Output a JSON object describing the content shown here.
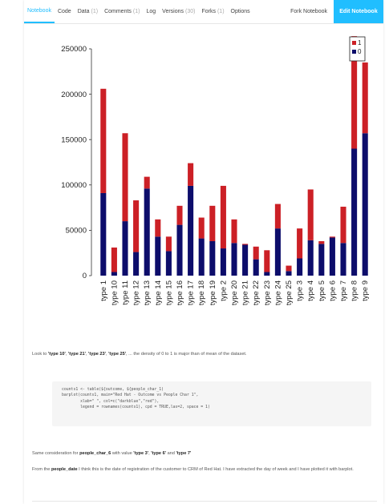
{
  "tabs": [
    {
      "label": "Notebook",
      "count": "",
      "active": true
    },
    {
      "label": "Code",
      "count": ""
    },
    {
      "label": "Data",
      "count": "(1)"
    },
    {
      "label": "Comments",
      "count": "(1)"
    },
    {
      "label": "Log",
      "count": ""
    },
    {
      "label": "Versions",
      "count": "(30)"
    },
    {
      "label": "Forks",
      "count": "(1)"
    },
    {
      "label": "Options",
      "count": ""
    }
  ],
  "fork_label": "Fork Notebook",
  "edit_label": "Edit Notebook",
  "accent": "#20beff",
  "chart_data": {
    "type": "bar",
    "stacked": true,
    "categories": [
      "type 1",
      "type 10",
      "type 11",
      "type 12",
      "type 13",
      "type 14",
      "type 15",
      "type 16",
      "type 17",
      "type 18",
      "type 19",
      "type 2",
      "type 20",
      "type 21",
      "type 22",
      "type 23",
      "type 24",
      "type 25",
      "type 3",
      "type 4",
      "type 5",
      "type 6",
      "type 7",
      "type 8",
      "type 9"
    ],
    "series": [
      {
        "name": "0",
        "color": "#0d0d6b",
        "values": [
          91000,
          4000,
          60000,
          26000,
          96000,
          43000,
          27000,
          56000,
          99000,
          41000,
          38000,
          30000,
          36000,
          34000,
          18000,
          4000,
          52000,
          5000,
          19000,
          39000,
          35000,
          42000,
          36000,
          140000,
          157000
        ]
      },
      {
        "name": "1",
        "color": "#cc2026",
        "values": [
          115000,
          27000,
          97000,
          57000,
          13000,
          19000,
          16000,
          21000,
          25000,
          23000,
          39000,
          69000,
          26000,
          1000,
          14000,
          24000,
          27000,
          6000,
          33000,
          56000,
          3000,
          1000,
          40000,
          124000,
          78000
        ]
      }
    ],
    "yticks": [
      0,
      50000,
      100000,
      150000,
      200000,
      250000
    ],
    "ylim": [
      0,
      265000
    ],
    "legend": [
      "1",
      "0"
    ],
    "legend_position": "top-right"
  },
  "note1": {
    "pre": "Look to ",
    "bold": [
      "'type 10'",
      "'type 21'",
      "'type 23'",
      "'type 25'"
    ],
    "post": ", ... the density of 0 to 1 is major than of mean of the dataset."
  },
  "code_lines": [
    "counts1 <- table(${outcome, ${people_char_1)",
    "barplot(counts1, main=\"Red Hat - Outcome vs People Char 1\",",
    "        xlab=\" \", col=c(\"darkblue\",\"red\"),",
    "        legend = rownames(counts1), cpd = TRUE,las=2, space = 1)"
  ],
  "note2": {
    "pre": "Same consideration for ",
    "bold1": "people_char_6",
    "mid": " with value ",
    "vals": [
      "'type 3'",
      "'type 6'",
      "'type 7'"
    ]
  },
  "note3": {
    "pre": "From the ",
    "bold": "people_date",
    "post": " I think this is the date of registration of the customer to CRM of Red Hat. I have extracted the day of week and I have plotted it with barplot."
  }
}
